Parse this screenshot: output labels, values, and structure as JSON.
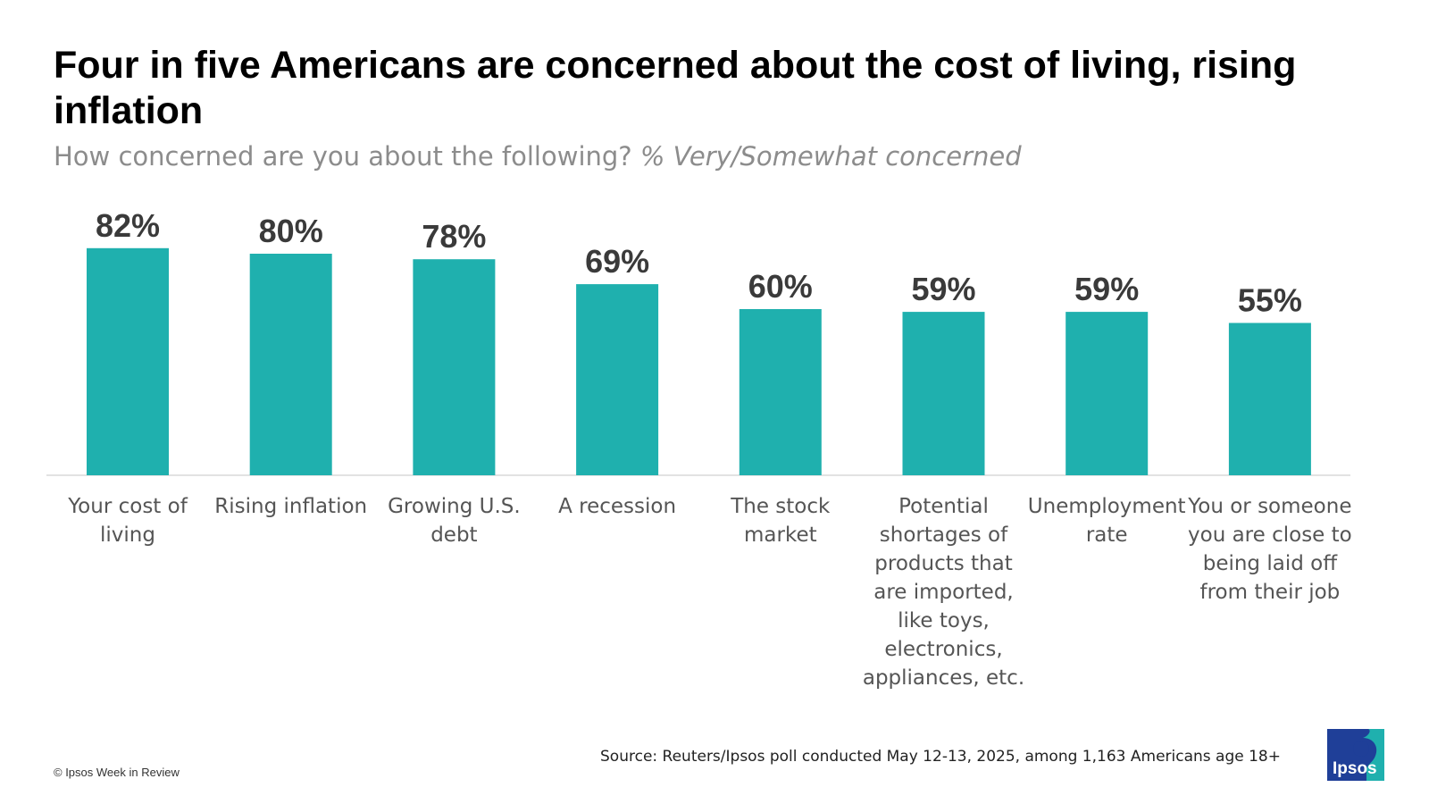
{
  "colors": {
    "bar": "#1fb0ae",
    "value_label": "#3a3a3a",
    "axis": "#d9d9d9",
    "logo_blue": "#1f3f98",
    "logo_teal": "#1fb0ae"
  },
  "header": {
    "title": "Four in five Americans are concerned about the cost of living, rising inflation",
    "subtitle_question": "How concerned are you about the following?",
    "subtitle_note": "% Very/Somewhat concerned"
  },
  "chart_data": {
    "type": "bar",
    "categories": [
      "Your cost of living",
      "Rising inflation",
      "Growing U.S. debt",
      "A recession",
      "The stock market",
      "Potential shortages of products that are imported, like toys, electronics, appliances, etc.",
      "Unemployment rate",
      "You or someone you are close to being laid off from their job"
    ],
    "values": [
      82,
      80,
      78,
      69,
      60,
      59,
      59,
      55
    ],
    "value_labels": [
      "82%",
      "80%",
      "78%",
      "69%",
      "60%",
      "59%",
      "59%",
      "55%"
    ],
    "ylim": [
      0,
      100
    ],
    "grid": false,
    "legend": "none"
  },
  "footer": {
    "source": "Source: Reuters/Ipsos poll conducted May 12-13, 2025, among 1,163 Americans age 18+",
    "copyright": "© Ipsos Week in Review",
    "logo_text": "Ipsos"
  }
}
